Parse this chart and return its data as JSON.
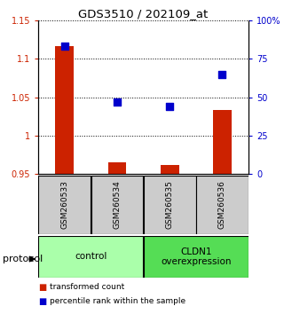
{
  "title": "GDS3510 / 202109_at",
  "samples": [
    "GSM260533",
    "GSM260534",
    "GSM260535",
    "GSM260536"
  ],
  "transformed_counts": [
    1.117,
    0.966,
    0.962,
    1.033
  ],
  "percentile_ranks": [
    83,
    47,
    44,
    65
  ],
  "ylim_left": [
    0.95,
    1.15
  ],
  "ylim_right": [
    0,
    100
  ],
  "yticks_left": [
    0.95,
    1.0,
    1.05,
    1.1,
    1.15
  ],
  "yticks_right": [
    0,
    25,
    50,
    75,
    100
  ],
  "ytick_labels_left": [
    "0.95",
    "1",
    "1.05",
    "1.1",
    "1.15"
  ],
  "ytick_labels_right": [
    "0",
    "25",
    "50",
    "75",
    "100%"
  ],
  "groups": [
    {
      "label": "control",
      "samples": [
        0,
        1
      ],
      "color": "#aaffaa"
    },
    {
      "label": "CLDN1\noverexpression",
      "samples": [
        2,
        3
      ],
      "color": "#55dd55"
    }
  ],
  "bar_color": "#cc2200",
  "dot_color": "#0000cc",
  "bar_width": 0.35,
  "dot_size": 35,
  "bg_color": "#ffffff",
  "plot_bg": "#ffffff",
  "legend_red_label": "transformed count",
  "legend_blue_label": "percentile rank within the sample",
  "protocol_label": "protocol",
  "sample_box_color": "#cccccc",
  "left_axis_color": "#cc2200",
  "right_axis_color": "#0000cc"
}
